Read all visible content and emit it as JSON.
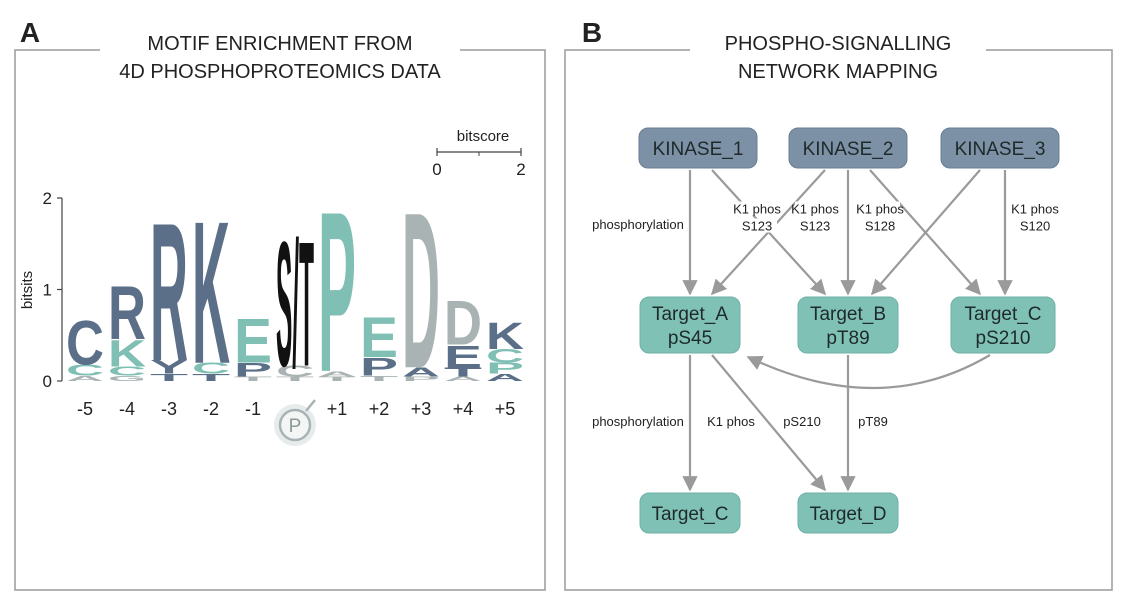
{
  "panel_a": {
    "label": "A",
    "title": [
      "MOTIF ENRICHMENT FROM",
      "4D PHOSPHOPROTEOMICS DATA"
    ],
    "y_label": "bitsits",
    "ylim": [
      0,
      2
    ],
    "yticks": [
      0,
      1,
      2
    ],
    "scale_bar": {
      "label": "bitscore",
      "xlim": [
        0,
        2
      ],
      "ticks": [
        0,
        2
      ]
    },
    "phospho_symbol": "P",
    "positions": [
      "-5",
      "-4",
      "-3",
      "-2",
      "-1",
      null,
      "+1",
      "+2",
      "+3",
      "+4",
      "+5"
    ],
    "columns": [
      [
        {
          "letter": "A",
          "height": 0.06,
          "color": "#a9b3b3"
        },
        {
          "letter": "C",
          "height": 0.12,
          "color": "#7fbfb4"
        },
        {
          "letter": "C",
          "height": 0.5,
          "color": "#5b6f88"
        }
      ],
      [
        {
          "letter": "G",
          "height": 0.06,
          "color": "#a9b3b3"
        },
        {
          "letter": "C",
          "height": 0.1,
          "color": "#7fbfb4"
        },
        {
          "letter": "K",
          "height": 0.3,
          "color": "#7fbfb4"
        },
        {
          "letter": "R",
          "height": 0.6,
          "color": "#5b6f88"
        }
      ],
      [
        {
          "letter": "T",
          "height": 0.08,
          "color": "#5b6f88"
        },
        {
          "letter": "Y",
          "height": 0.15,
          "color": "#5b6f88"
        },
        {
          "letter": "R",
          "height": 1.55,
          "color": "#5b6f88"
        }
      ],
      [
        {
          "letter": "T",
          "height": 0.08,
          "color": "#5b6f88"
        },
        {
          "letter": "C",
          "height": 0.12,
          "color": "#7fbfb4"
        },
        {
          "letter": "K",
          "height": 1.6,
          "color": "#5b6f88"
        }
      ],
      [
        {
          "letter": "T",
          "height": 0.05,
          "color": "#a9b3b3"
        },
        {
          "letter": "P",
          "height": 0.15,
          "color": "#5b6f88"
        },
        {
          "letter": "E",
          "height": 0.5,
          "color": "#7fbfb4"
        }
      ],
      [
        {
          "letter": "T",
          "height": 0.05,
          "color": "#a9b3b3"
        },
        {
          "letter": "C",
          "height": 0.12,
          "color": "#a9b3b3"
        },
        {
          "letter": "S/T",
          "height": 1.4,
          "color": "#111111"
        }
      ],
      [
        {
          "letter": "T",
          "height": 0.05,
          "color": "#a9b3b3"
        },
        {
          "letter": "A",
          "height": 0.06,
          "color": "#a9b3b3"
        },
        {
          "letter": "P",
          "height": 1.8,
          "color": "#7fbfb4"
        }
      ],
      [
        {
          "letter": "T",
          "height": 0.06,
          "color": "#a9b3b3"
        },
        {
          "letter": "P",
          "height": 0.2,
          "color": "#5b6f88"
        },
        {
          "letter": "E",
          "height": 0.45,
          "color": "#7fbfb4"
        }
      ],
      [
        {
          "letter": "P",
          "height": 0.05,
          "color": "#a9b3b3"
        },
        {
          "letter": "A",
          "height": 0.1,
          "color": "#5b6f88"
        },
        {
          "letter": "D",
          "height": 1.75,
          "color": "#a9b3b3"
        }
      ],
      [
        {
          "letter": "A",
          "height": 0.05,
          "color": "#a9b3b3"
        },
        {
          "letter": "T",
          "height": 0.1,
          "color": "#5b6f88"
        },
        {
          "letter": "E",
          "height": 0.25,
          "color": "#5b6f88"
        },
        {
          "letter": "D",
          "height": 0.5,
          "color": "#a9b3b3"
        }
      ],
      [
        {
          "letter": "A",
          "height": 0.08,
          "color": "#5b6f88"
        },
        {
          "letter": "P",
          "height": 0.12,
          "color": "#7fbfb4"
        },
        {
          "letter": "C",
          "height": 0.15,
          "color": "#7fbfb4"
        },
        {
          "letter": "K",
          "height": 0.3,
          "color": "#5b6f88"
        }
      ]
    ]
  },
  "panel_b": {
    "label": "B",
    "title": [
      "PHOSPHO-SIGNALLING",
      "NETWORK MAPPING"
    ],
    "nodes": [
      {
        "lines": [
          "KINASE_1"
        ],
        "kind": "kinase"
      },
      {
        "lines": [
          "KINASE_2"
        ],
        "kind": "kinase"
      },
      {
        "lines": [
          "KINASE_3"
        ],
        "kind": "kinase"
      },
      {
        "lines": [
          "Target_A",
          "pS45"
        ],
        "kind": "target"
      },
      {
        "lines": [
          "Target_B",
          "pT89"
        ],
        "kind": "target"
      },
      {
        "lines": [
          "Target_C",
          "pS210"
        ],
        "kind": "target"
      },
      {
        "lines": [
          "Target_C"
        ],
        "kind": "target"
      },
      {
        "lines": [
          "Target_D"
        ],
        "kind": "target"
      }
    ],
    "edge_labels": [
      [
        "phosphorylation"
      ],
      [
        "K1 phos",
        "S123"
      ],
      [
        "K1 phos",
        "S123"
      ],
      [
        "K1 phos",
        "S128"
      ],
      [
        "K1 phos",
        "S120"
      ],
      [
        "phosphorylation"
      ],
      [
        "K1 phos"
      ],
      [
        "pS210"
      ],
      [
        "pT89"
      ]
    ]
  }
}
